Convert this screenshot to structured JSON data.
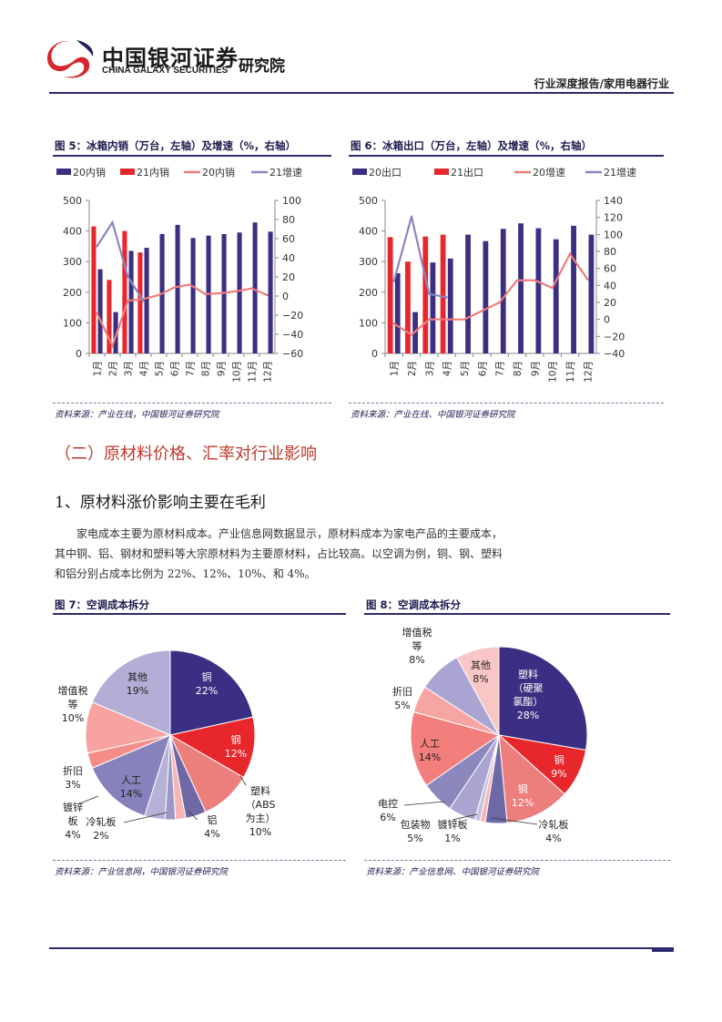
{
  "header": {
    "company_cn": "中国银河证券",
    "company_en": "CHINA GALAXY SECURITIES",
    "institute": "研究院",
    "category": "行业深度报告/家用电器行业"
  },
  "fig5": {
    "title": "图 5：冰箱内销（万台，左轴）及增速（%，右轴）",
    "source": "资料来源：产业在线，中国银河证券研究院"
  },
  "fig6": {
    "title": "图 6：冰箱出口（万台，左轴）及增速（%，右轴）",
    "source": "资料来源：产业在线、中国银河证券研究院"
  },
  "section": {
    "h2": "（二）原材料价格、汇率对行业影响",
    "h3": "1、原材料涨价影响主要在毛利",
    "para": [
      "家电成本主要为原材料成本。产业信息网数据显示，原材料成本为家电产品的主要成本，",
      "其中铜、铝、钢材和塑料等大宗原材料为主要原材料，占比较高。以空调为例，铜、钢、塑料",
      "和铝分别占成本比例为 22%、12%、10%、和 4%。"
    ]
  },
  "fig7": {
    "title": "图 7：空调成本拆分",
    "source": "资料来源：产业信息网，中国银河证券研究院"
  },
  "fig8": {
    "title": "图 8：空调成本拆分",
    "source": "资料来源：产业信息网、中国银河证券研究院"
  },
  "colors": {
    "navy": "#3a2f82",
    "red": "#e8272c",
    "salmon": "#f07c7a",
    "lavender": "#8b85c1",
    "rule": "#2a2a6e",
    "h2": "#c0392b"
  },
  "chart_data": [
    {
      "type": "bar",
      "categories": [
        "1月",
        "2月",
        "3月",
        "4月",
        "5月",
        "6月",
        "7月",
        "8月",
        "9月",
        "10月",
        "11月",
        "12月"
      ],
      "series": [
        {
          "name": "20内销",
          "kind": "bar",
          "axis": "left",
          "color": "#3a2f82",
          "values": [
            275,
            135,
            335,
            345,
            390,
            420,
            377,
            385,
            390,
            395,
            428,
            398
          ]
        },
        {
          "name": "21内销",
          "kind": "bar",
          "axis": "left",
          "color": "#e8272c",
          "values": [
            415,
            240,
            400,
            330,
            null,
            null,
            null,
            null,
            null,
            null,
            null,
            null
          ]
        },
        {
          "name": "20内销",
          "kind": "line",
          "axis": "right",
          "color": "#f07c7a",
          "values": [
            -18,
            -52,
            -5,
            -3,
            1,
            9,
            12,
            2,
            3,
            5,
            8,
            1
          ]
        },
        {
          "name": "21增速",
          "kind": "line",
          "axis": "right",
          "color": "#8b85c1",
          "values": [
            52,
            77,
            20,
            -5,
            null,
            null,
            null,
            null,
            null,
            null,
            null,
            null
          ]
        }
      ],
      "ylim": [
        0,
        500
      ],
      "yticks": [
        0,
        100,
        200,
        300,
        400,
        500
      ],
      "y2lim": [
        -60,
        100
      ],
      "y2ticks": [
        -60,
        -40,
        -20,
        0,
        20,
        40,
        60,
        80,
        100
      ],
      "legend": "top"
    },
    {
      "type": "bar",
      "categories": [
        "1月",
        "2月",
        "3月",
        "4月",
        "5月",
        "6月",
        "7月",
        "8月",
        "9月",
        "10月",
        "11月",
        "12月"
      ],
      "series": [
        {
          "name": "20出口",
          "kind": "bar",
          "axis": "left",
          "color": "#3a2f82",
          "values": [
            262,
            135,
            297,
            310,
            388,
            367,
            407,
            425,
            409,
            373,
            417,
            388
          ]
        },
        {
          "name": "21出口",
          "kind": "bar",
          "axis": "left",
          "color": "#e8272c",
          "values": [
            380,
            300,
            382,
            388,
            null,
            null,
            null,
            null,
            null,
            null,
            null,
            null
          ]
        },
        {
          "name": "20增速",
          "kind": "line",
          "axis": "right",
          "color": "#f07c7a",
          "values": [
            -5,
            -18,
            0,
            0,
            0,
            10,
            20,
            46,
            46,
            37,
            77,
            47
          ]
        },
        {
          "name": "21增速",
          "kind": "line",
          "axis": "right",
          "color": "#8b85c1",
          "values": [
            45,
            121,
            30,
            26,
            null,
            null,
            null,
            null,
            null,
            null,
            null,
            null
          ]
        }
      ],
      "ylim": [
        0,
        500
      ],
      "yticks": [
        0,
        100,
        200,
        300,
        400,
        500
      ],
      "y2lim": [
        -40,
        140
      ],
      "y2ticks": [
        -40,
        -20,
        0,
        20,
        40,
        60,
        80,
        100,
        120,
        140
      ],
      "legend": "top"
    },
    {
      "type": "pie",
      "slices": [
        {
          "label": "铜",
          "label2": "22%",
          "value": 22,
          "color": "#3a2f82"
        },
        {
          "label": "钢",
          "label2": "12%",
          "value": 12,
          "color": "#e8272c"
        },
        {
          "label": "塑料（ABS为主）",
          "label2": "10%",
          "value": 10,
          "color": "#ec7f7c"
        },
        {
          "label": "铝",
          "label2": "4%",
          "value": 4,
          "color": "#6e68a6"
        },
        {
          "label": "",
          "value": 2,
          "color": "#f6b6b4"
        },
        {
          "label": "冷轧板",
          "label2": "2%",
          "value": 2,
          "color": "#9c97c6"
        },
        {
          "label": "镀锌板",
          "label2": "4%",
          "value": 4,
          "color": "#b6b1d6"
        },
        {
          "label": "人工",
          "label2": "14%",
          "value": 14,
          "color": "#8782bb"
        },
        {
          "label": "折旧",
          "label2": "3%",
          "value": 3,
          "color": "#f48d8a"
        },
        {
          "label": "增值税等",
          "label2": "10%",
          "value": 10,
          "color": "#f6a3a1"
        },
        {
          "label": "其他",
          "label2": "19%",
          "value": 19,
          "color": "#b2aed6"
        }
      ]
    },
    {
      "type": "pie",
      "slices": [
        {
          "label": "塑料（硬聚氯酯）",
          "label2": "28%",
          "value": 28,
          "color": "#3a2f82"
        },
        {
          "label": "铜",
          "label2": "9%",
          "value": 9,
          "color": "#e8272c"
        },
        {
          "label": "钢",
          "label2": "12%",
          "value": 12,
          "color": "#ec7f7c"
        },
        {
          "label": "冷轧板",
          "label2": "4%",
          "value": 4,
          "color": "#6e68a6"
        },
        {
          "label": "",
          "value": 1,
          "color": "#f6b6b4"
        },
        {
          "label": "镀锌板",
          "label2": "1%",
          "value": 1,
          "color": "#c5c1e0"
        },
        {
          "label": "包装物",
          "label2": "5%",
          "value": 5,
          "color": "#aaa5d0"
        },
        {
          "label": "电控",
          "label2": "6%",
          "value": 6,
          "color": "#8c87bd"
        },
        {
          "label": "人工",
          "label2": "14%",
          "value": 14,
          "color": "#f27f7c"
        },
        {
          "label": "折旧",
          "label2": "5%",
          "value": 5,
          "color": "#f6a5a3"
        },
        {
          "label": "增值税等",
          "label2": "8%",
          "value": 8,
          "color": "#a9a4d1"
        },
        {
          "label": "其他",
          "label2": "8%",
          "value": 8,
          "color": "#f8c6c5"
        }
      ]
    }
  ]
}
